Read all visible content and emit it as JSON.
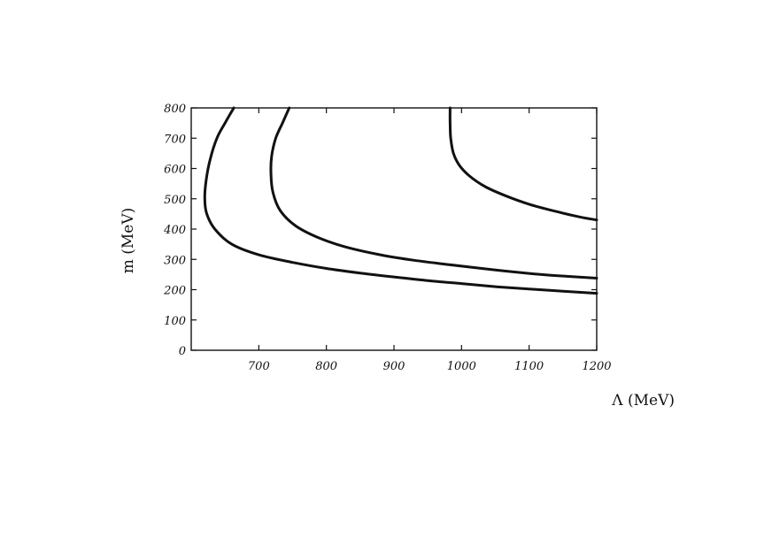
{
  "chart_data": {
    "type": "line",
    "title": "",
    "xlabel": "Λ (MeV)",
    "ylabel": "m (MeV)",
    "xlim": [
      600,
      1200
    ],
    "ylim": [
      0,
      800
    ],
    "x_ticks": [
      700,
      800,
      900,
      1000,
      1100,
      1200
    ],
    "y_ticks": [
      0,
      100,
      200,
      300,
      400,
      500,
      600,
      700,
      800
    ],
    "grid": false,
    "legend": "none",
    "series": [
      {
        "points": [
          [
            663,
            800
          ],
          [
            650,
            750
          ],
          [
            638,
            700
          ],
          [
            628,
            630
          ],
          [
            622,
            560
          ],
          [
            620,
            500
          ],
          [
            623,
            450
          ],
          [
            635,
            400
          ],
          [
            660,
            350
          ],
          [
            700,
            315
          ],
          [
            750,
            290
          ],
          [
            800,
            270
          ],
          [
            850,
            255
          ],
          [
            900,
            242
          ],
          [
            950,
            230
          ],
          [
            1000,
            220
          ],
          [
            1050,
            210
          ],
          [
            1100,
            202
          ],
          [
            1150,
            195
          ],
          [
            1200,
            188
          ]
        ]
      },
      {
        "points": [
          [
            745,
            800
          ],
          [
            735,
            750
          ],
          [
            725,
            700
          ],
          [
            719,
            640
          ],
          [
            718,
            580
          ],
          [
            721,
            520
          ],
          [
            732,
            460
          ],
          [
            755,
            410
          ],
          [
            790,
            370
          ],
          [
            830,
            340
          ],
          [
            880,
            315
          ],
          [
            930,
            297
          ],
          [
            980,
            283
          ],
          [
            1030,
            270
          ],
          [
            1080,
            258
          ],
          [
            1130,
            248
          ],
          [
            1200,
            238
          ]
        ]
      },
      {
        "points": [
          [
            983,
            800
          ],
          [
            983,
            750
          ],
          [
            984,
            700
          ],
          [
            988,
            650
          ],
          [
            997,
            610
          ],
          [
            1012,
            575
          ],
          [
            1035,
            540
          ],
          [
            1065,
            510
          ],
          [
            1100,
            482
          ],
          [
            1140,
            458
          ],
          [
            1175,
            440
          ],
          [
            1200,
            430
          ]
        ]
      }
    ]
  }
}
